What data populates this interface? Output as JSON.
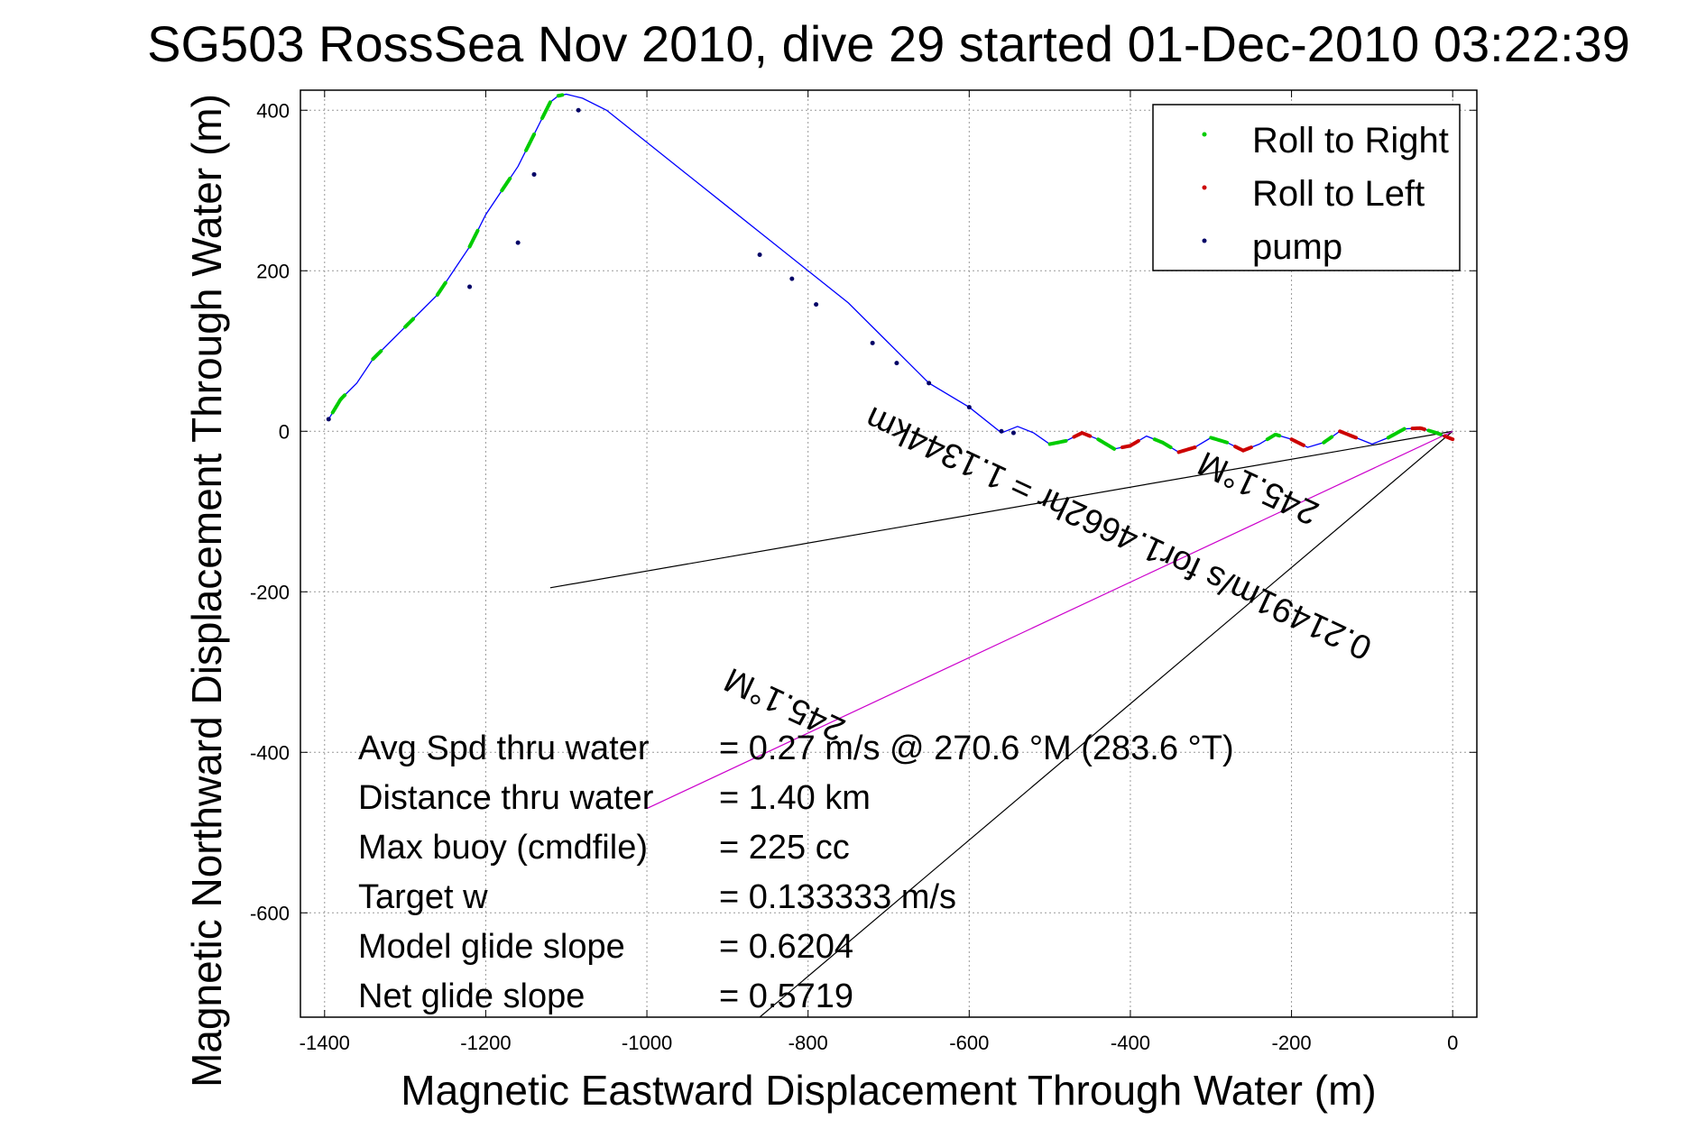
{
  "chart_data": {
    "type": "line",
    "title": "SG503 RossSea Nov 2010, dive 29 started 01-Dec-2010 03:22:39",
    "xlabel": "Magnetic Eastward Displacement Through Water (m)",
    "ylabel": "Magnetic Northward Displacement Through Water (m)",
    "xlim": [
      -1430,
      30
    ],
    "ylim": [
      -730,
      425
    ],
    "xticks": [
      -1400,
      -1200,
      -1000,
      -800,
      -600,
      -400,
      -200,
      0
    ],
    "yticks": [
      -600,
      -400,
      -200,
      0,
      200,
      400
    ],
    "grid": true,
    "legend_position": "top-right",
    "legend": [
      {
        "label": "Roll to Right",
        "color": "#00cc00"
      },
      {
        "label": "Roll to Left",
        "color": "#cc0000"
      },
      {
        "label": "pump",
        "color": "#000066"
      }
    ],
    "track_color": "#0000ff",
    "track": {
      "x": [
        0,
        -20,
        -40,
        -60,
        -80,
        -100,
        -120,
        -140,
        -160,
        -180,
        -200,
        -220,
        -240,
        -260,
        -280,
        -300,
        -320,
        -340,
        -360,
        -380,
        -400,
        -420,
        -440,
        -460,
        -480,
        -500,
        -520,
        -540,
        -560,
        -600,
        -650,
        -700,
        -750,
        -800,
        -850,
        -900,
        -950,
        -1000,
        -1050,
        -1080,
        -1100,
        -1110,
        -1120,
        -1140,
        -1160,
        -1180,
        -1200,
        -1220,
        -1240,
        -1260,
        -1280,
        -1300,
        -1320,
        -1340,
        -1360,
        -1380,
        -1395
      ],
      "y": [
        -10,
        -2,
        4,
        3,
        -8,
        -16,
        -8,
        0,
        -14,
        -20,
        -10,
        -4,
        -16,
        -24,
        -14,
        -8,
        -20,
        -26,
        -14,
        -6,
        -18,
        -22,
        -10,
        -2,
        -12,
        -16,
        -2,
        6,
        -2,
        30,
        60,
        110,
        160,
        200,
        240,
        280,
        320,
        360,
        400,
        415,
        420,
        418,
        410,
        370,
        330,
        300,
        270,
        230,
        200,
        170,
        150,
        130,
        110,
        90,
        60,
        40,
        15
      ],
      "roll_right_segments": [
        [
          -1390,
          -1375
        ],
        [
          -1340,
          -1330
        ],
        [
          -1300,
          -1290
        ],
        [
          -1260,
          -1250
        ],
        [
          -1220,
          -1210
        ],
        [
          -1180,
          -1170
        ],
        [
          -1150,
          -1140
        ],
        [
          -1130,
          -1120
        ],
        [
          -1110,
          -1105
        ],
        [
          -500,
          -480
        ],
        [
          -440,
          -420
        ],
        [
          -370,
          -350
        ],
        [
          -300,
          -280
        ],
        [
          -230,
          -215
        ],
        [
          -160,
          -150
        ],
        [
          -80,
          -60
        ],
        [
          -30,
          -15
        ]
      ],
      "roll_left_segments": [
        [
          -470,
          -450
        ],
        [
          -410,
          -390
        ],
        [
          -340,
          -320
        ],
        [
          -270,
          -250
        ],
        [
          -200,
          -185
        ],
        [
          -140,
          -120
        ],
        [
          -50,
          -35
        ],
        [
          -10,
          0
        ]
      ],
      "pump_points": [
        {
          "x": -1395,
          "y": 15
        },
        {
          "x": -1220,
          "y": 180
        },
        {
          "x": -1160,
          "y": 235
        },
        {
          "x": -1140,
          "y": 320
        },
        {
          "x": -1085,
          "y": 400
        },
        {
          "x": -860,
          "y": 220
        },
        {
          "x": -820,
          "y": 190
        },
        {
          "x": -790,
          "y": 158
        },
        {
          "x": -720,
          "y": 110
        },
        {
          "x": -690,
          "y": 85
        },
        {
          "x": -650,
          "y": 60
        },
        {
          "x": -600,
          "y": 30
        },
        {
          "x": -560,
          "y": 0
        },
        {
          "x": -545,
          "y": -2
        }
      ]
    },
    "lines": [
      {
        "name": "heading",
        "color": "#000000",
        "x": [
          0,
          -1120
        ],
        "y": [
          0,
          -195
        ]
      },
      {
        "name": "current",
        "color": "#000000",
        "x": [
          0,
          -860
        ],
        "y": [
          0,
          -730
        ]
      },
      {
        "name": "avg-velocity",
        "color": "#cc00cc",
        "x": [
          0,
          -1000
        ],
        "y": [
          0,
          -470
        ]
      }
    ],
    "annotations": [
      {
        "text": "0.21491m/s for1.4662hr = 1.1344km",
        "rotation": 205
      },
      {
        "text": "245.1°M",
        "rotation": 205
      },
      {
        "text": "245.1°M",
        "rotation": 205
      }
    ],
    "stats": [
      {
        "label": "Avg Spd thru water",
        "value": "=  0.27 m/s @ 270.6  °M (283.6 °T)"
      },
      {
        "label": "Distance thru water",
        "value": "=  1.40 km"
      },
      {
        "label": "Max buoy (cmdfile)",
        "value": "= 225 cc"
      },
      {
        "label": "Target w",
        "value": "= 0.133333 m/s"
      },
      {
        "label": "Model glide slope",
        "value": "= 0.6204"
      },
      {
        "label": "Net glide slope",
        "value": "= 0.5719"
      }
    ]
  }
}
